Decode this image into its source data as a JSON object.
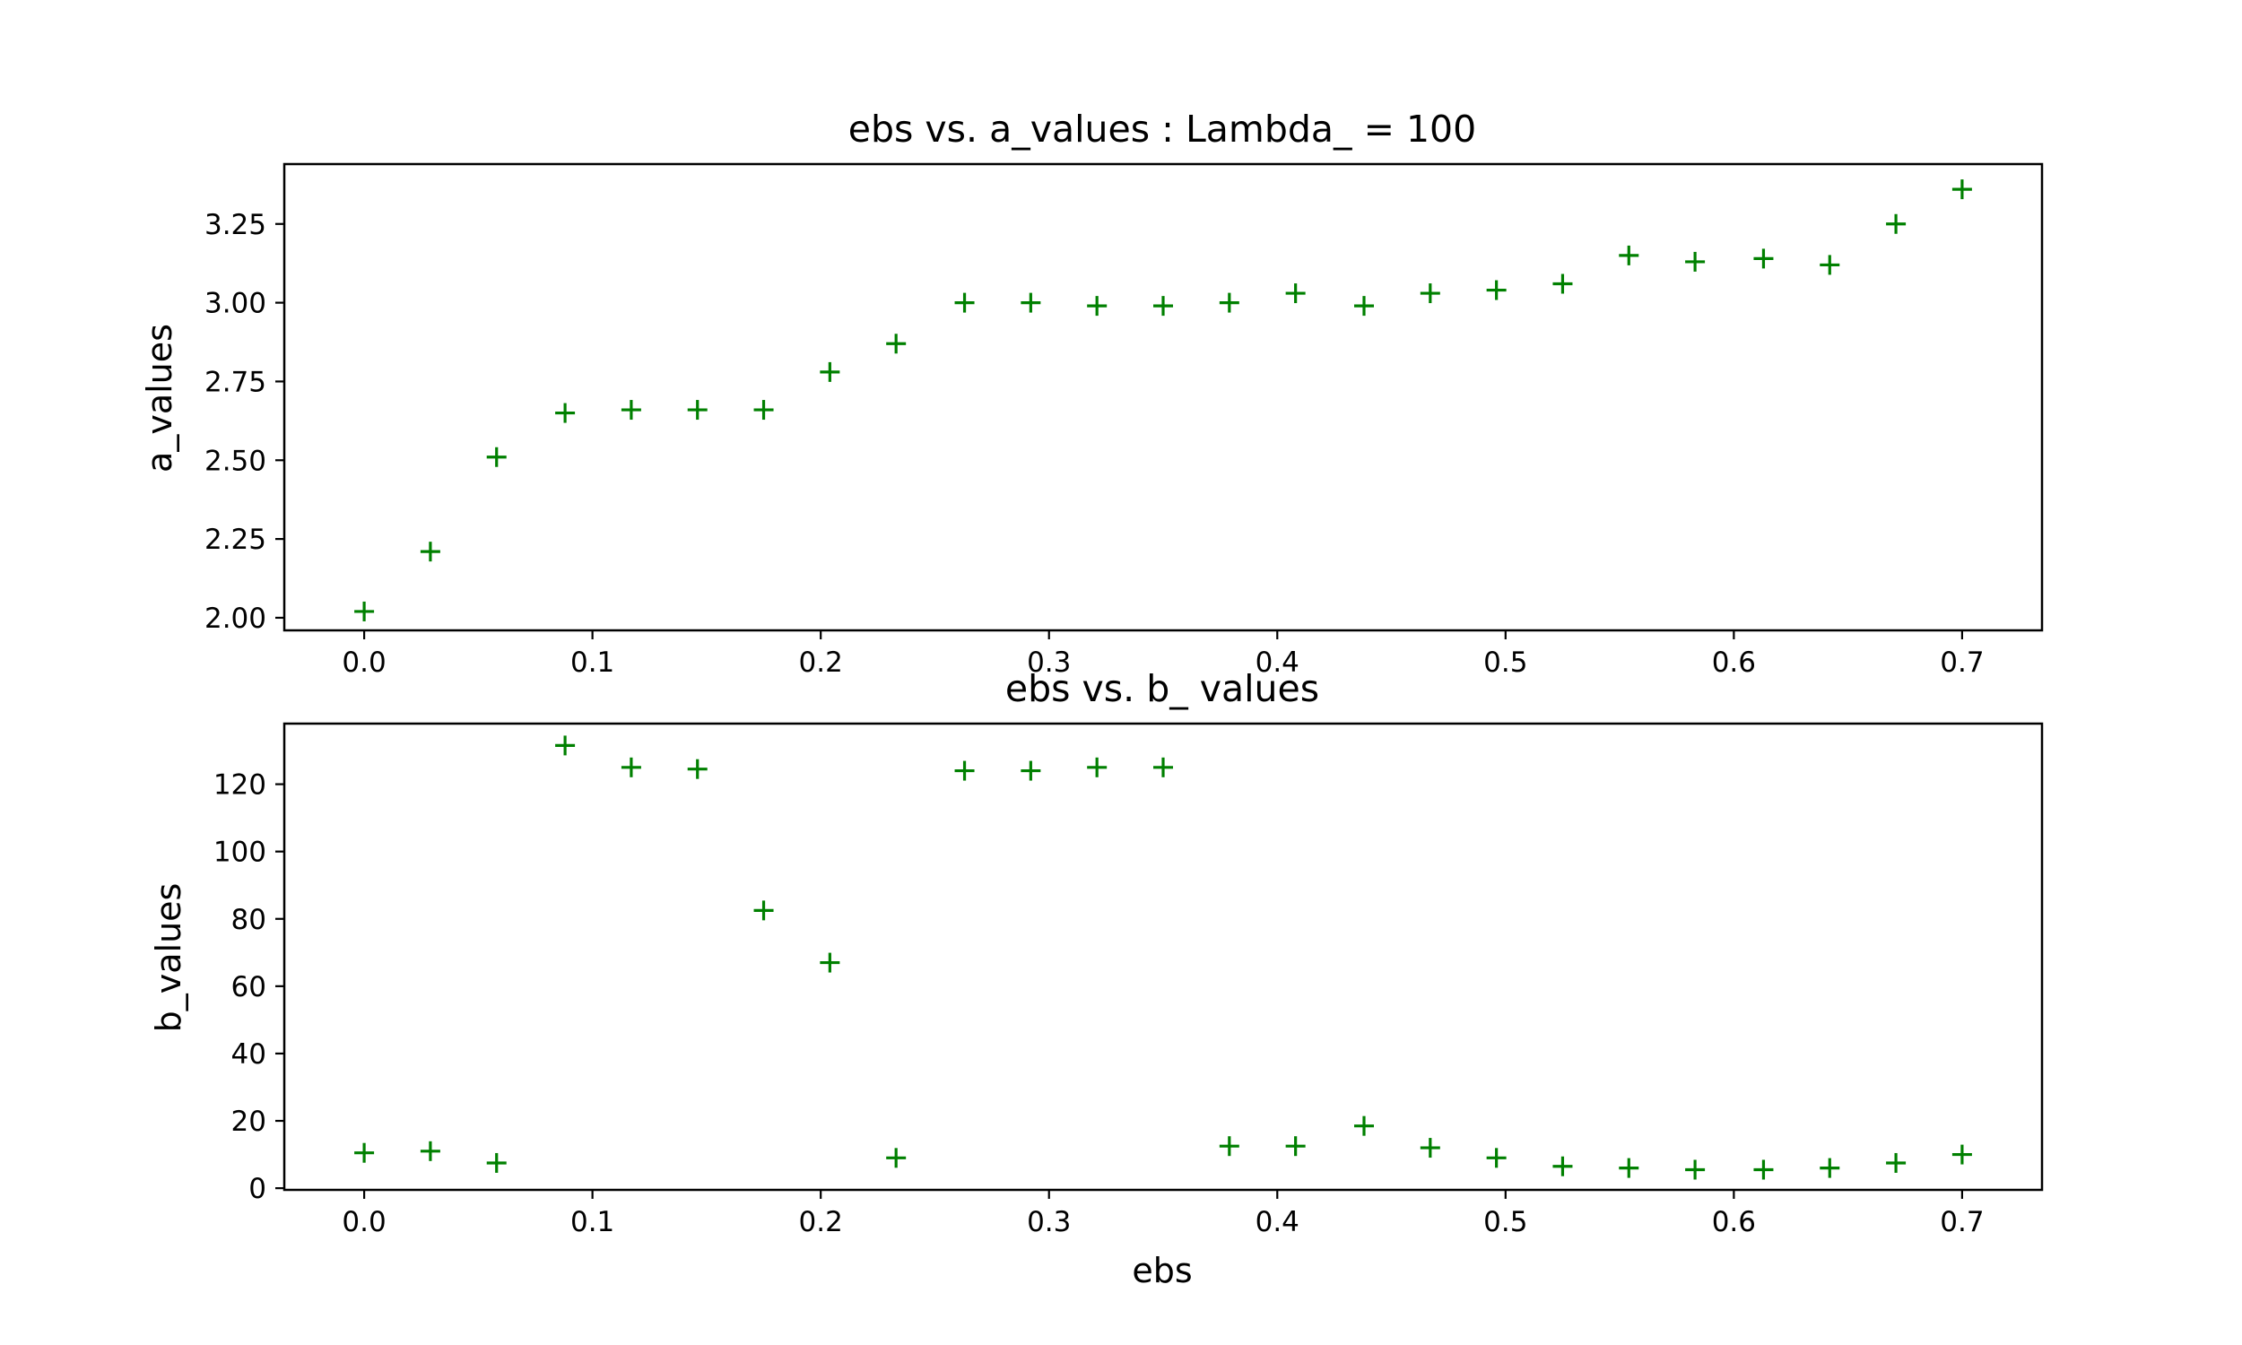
{
  "chart_data": [
    {
      "type": "scatter",
      "title": "ebs vs. a_values : Lambda_ = 100",
      "xlabel": "",
      "ylabel": "a_values",
      "xlim": [
        -0.035,
        0.735
      ],
      "ylim": [
        1.96,
        3.44
      ],
      "xticks": [
        0.0,
        0.1,
        0.2,
        0.3,
        0.4,
        0.5,
        0.6,
        0.7
      ],
      "xtick_labels": [
        "0.0",
        "0.1",
        "0.2",
        "0.3",
        "0.4",
        "0.5",
        "0.6",
        "0.7"
      ],
      "yticks": [
        2.0,
        2.25,
        2.5,
        2.75,
        3.0,
        3.25
      ],
      "ytick_labels": [
        "2.00",
        "2.25",
        "2.50",
        "2.75",
        "3.00",
        "3.25"
      ],
      "marker": "+",
      "color": "#008000",
      "grid": false,
      "x": [
        0.0,
        0.029,
        0.058,
        0.088,
        0.117,
        0.146,
        0.175,
        0.204,
        0.233,
        0.263,
        0.292,
        0.321,
        0.35,
        0.379,
        0.408,
        0.438,
        0.467,
        0.496,
        0.525,
        0.554,
        0.583,
        0.613,
        0.642,
        0.671,
        0.7
      ],
      "y": [
        2.02,
        2.21,
        2.51,
        2.65,
        2.66,
        2.66,
        2.66,
        2.78,
        2.87,
        3.0,
        3.0,
        2.99,
        2.99,
        3.0,
        3.03,
        2.99,
        3.03,
        3.04,
        3.06,
        3.15,
        3.13,
        3.14,
        3.12,
        3.25,
        3.36
      ]
    },
    {
      "type": "scatter",
      "title": "ebs vs. b_ values",
      "xlabel": "ebs",
      "ylabel": "b_values",
      "xlim": [
        -0.035,
        0.735
      ],
      "ylim": [
        -0.5,
        138
      ],
      "xticks": [
        0.0,
        0.1,
        0.2,
        0.3,
        0.4,
        0.5,
        0.6,
        0.7
      ],
      "xtick_labels": [
        "0.0",
        "0.1",
        "0.2",
        "0.3",
        "0.4",
        "0.5",
        "0.6",
        "0.7"
      ],
      "yticks": [
        0,
        20,
        40,
        60,
        80,
        100,
        120
      ],
      "ytick_labels": [
        "0",
        "20",
        "40",
        "60",
        "80",
        "100",
        "120"
      ],
      "marker": "+",
      "color": "#008000",
      "grid": false,
      "x": [
        0.0,
        0.029,
        0.058,
        0.088,
        0.117,
        0.146,
        0.175,
        0.204,
        0.233,
        0.263,
        0.292,
        0.321,
        0.35,
        0.379,
        0.408,
        0.438,
        0.467,
        0.496,
        0.525,
        0.554,
        0.583,
        0.613,
        0.642,
        0.671,
        0.7
      ],
      "y": [
        10.5,
        11.0,
        7.5,
        131.5,
        125.0,
        124.5,
        82.5,
        67.0,
        9.0,
        124.0,
        124.0,
        125.0,
        125.0,
        12.5,
        12.5,
        18.5,
        12.0,
        9.0,
        6.5,
        6.0,
        5.5,
        5.5,
        6.0,
        7.5,
        10.0
      ]
    }
  ]
}
